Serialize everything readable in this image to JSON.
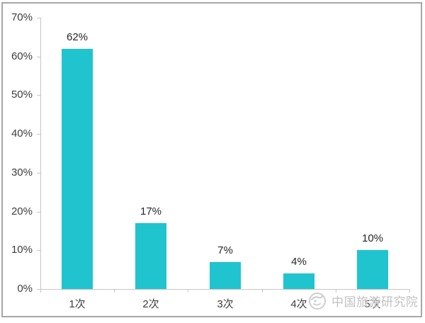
{
  "chart_data": {
    "type": "bar",
    "categories": [
      "1次",
      "2次",
      "3次",
      "4次",
      "5次"
    ],
    "values": [
      62,
      17,
      7,
      4,
      10
    ],
    "data_labels": [
      "62%",
      "17%",
      "7%",
      "4%",
      "10%"
    ],
    "y_tick_labels": [
      "0%",
      "10%",
      "20%",
      "30%",
      "40%",
      "50%",
      "60%",
      "70%"
    ],
    "ylim": [
      0,
      70
    ],
    "y_step": 10,
    "title": "",
    "xlabel": "",
    "ylabel": "",
    "grid": false,
    "legend": "none",
    "bar_color": "#1fc4ce",
    "axis_color": "#c6c6c6",
    "label_color": "#262626",
    "tick_label_color": "#3d3d3d"
  },
  "watermark": {
    "text": "中国旅游研究院",
    "logo": "china-tourism-academy-logo",
    "color": "#c2c2c2"
  },
  "frame": {
    "border_color": "#a7a7a7"
  }
}
